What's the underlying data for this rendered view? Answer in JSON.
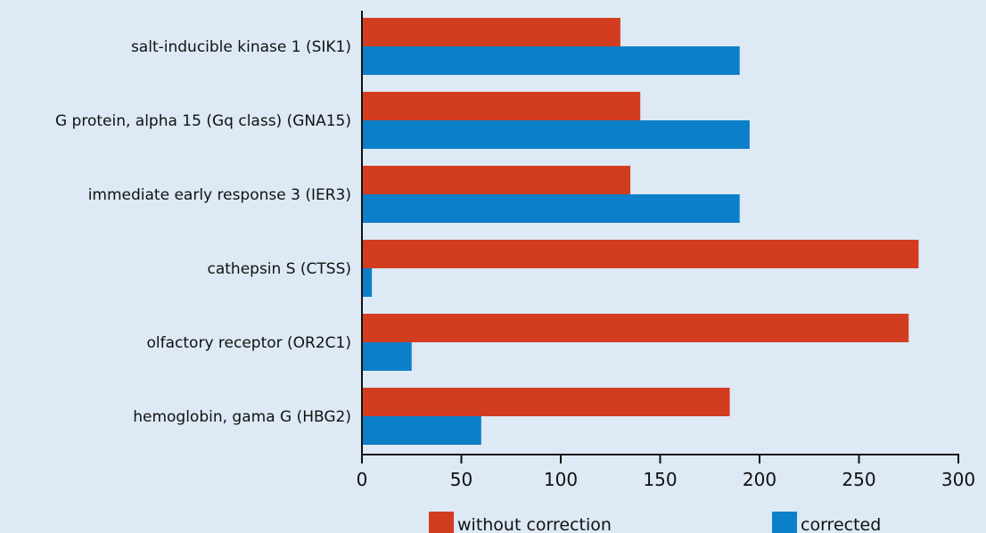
{
  "chart_data": {
    "type": "bar",
    "orientation": "horizontal",
    "title": "",
    "xlabel": "",
    "ylabel": "",
    "categories": [
      "salt-inducible kinase 1 (SIK1)",
      "G protein, alpha 15 (Gq class) (GNA15)",
      "immediate early response 3 (IER3)",
      "cathepsin S (CTSS)",
      "olfactory receptor (OR2C1)",
      "hemoglobin, gama G (HBG2)"
    ],
    "series": [
      {
        "name": "without correction",
        "color": "#d33d1f",
        "values": [
          130,
          140,
          135,
          280,
          275,
          185
        ]
      },
      {
        "name": "corrected",
        "color": "#0b7fc8",
        "values": [
          190,
          195,
          190,
          5,
          25,
          60
        ]
      }
    ],
    "xlim": [
      0,
      300
    ],
    "xticks": [
      "0",
      "50",
      "100",
      "150",
      "200",
      "250",
      "300"
    ],
    "grid": false,
    "legend_position": "bottom"
  }
}
